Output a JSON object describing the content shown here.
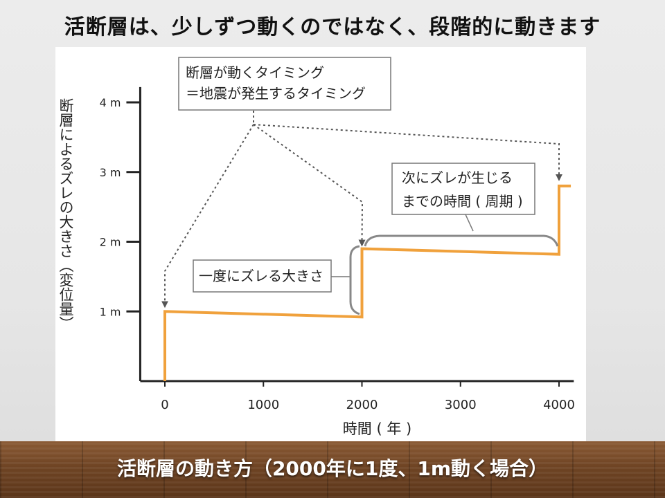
{
  "slide": {
    "title": "活断層は、少しずつ動くのではなく、段階的に動きます",
    "caption": "活断層の動き方（2000年に1度、1m動く場合）"
  },
  "chart_data": {
    "type": "line",
    "title": "",
    "xlabel": "時間 ( 年 )",
    "ylabel": "断層によるズレの大きさ（変位量）",
    "xlim": [
      -250,
      4150
    ],
    "ylim": [
      0,
      4.2
    ],
    "x_ticks": [
      0,
      1000,
      2000,
      3000,
      4000
    ],
    "x_tick_labels": [
      "0",
      "1000",
      "2000",
      "3000",
      "4000"
    ],
    "y_ticks": [
      1,
      2,
      3,
      4
    ],
    "y_tick_labels": [
      "1 m",
      "2 m",
      "3 m",
      "4 m"
    ],
    "grid": false,
    "series": [
      {
        "color": "#f0a13c",
        "x": [
          0,
          0,
          2000,
          2000,
          4000,
          4000,
          4120
        ],
        "y": [
          0,
          1.0,
          0.92,
          1.9,
          1.82,
          2.8,
          2.8
        ]
      }
    ],
    "annotations": {
      "timing_box": {
        "line1": "断層が動くタイミング",
        "line2": "＝地震が発生するタイミング"
      },
      "slip_label": "一度にズレる大きさ",
      "period_label": {
        "line1": "次にズレが生じる",
        "line2": "までの時間 ( 周期 )"
      }
    }
  }
}
